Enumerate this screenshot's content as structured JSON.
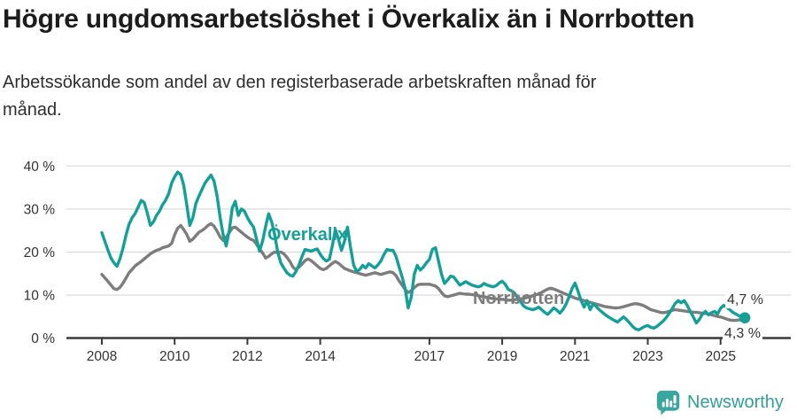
{
  "header": {
    "title": "Högre ungdomsarbetslöshet i Överkalix än i Norrbotten",
    "subtitle": "Arbetssökande som andel av den registerbaserade arbetskraften månad för månad."
  },
  "chart_data": {
    "type": "line",
    "title": "Högre ungdomsarbetslöshet i Överkalix än i Norrbotten",
    "subtitle": "Arbetssökande som andel av den registerbaserade arbetskraften månad för månad.",
    "x_unit": "month",
    "x_start": "2008-01",
    "x_end": "2025-09",
    "ylim": [
      0,
      40
    ],
    "grid": "horizontal",
    "legend_position": "inline-labels",
    "y_ticks": [
      {
        "value": 0,
        "label": "0 %"
      },
      {
        "value": 10,
        "label": "10 %"
      },
      {
        "value": 20,
        "label": "20 %"
      },
      {
        "value": 30,
        "label": "30 %"
      },
      {
        "value": 40,
        "label": "40 %"
      }
    ],
    "x_ticks": [
      {
        "year": 2008,
        "label": "2008"
      },
      {
        "year": 2010,
        "label": "2010"
      },
      {
        "year": 2012,
        "label": "2012"
      },
      {
        "year": 2014,
        "label": "2014"
      },
      {
        "year": 2017,
        "label": "2017"
      },
      {
        "year": 2019,
        "label": "2019"
      },
      {
        "year": 2021,
        "label": "2021"
      },
      {
        "year": 2023,
        "label": "2023"
      },
      {
        "year": 2025,
        "label": "2025"
      }
    ],
    "series": [
      {
        "name": "Överkalix",
        "color": "#14a098",
        "end_label": "4,7 %",
        "end_value": 4.7,
        "end_marker": "dot",
        "values": [
          24.5,
          22.5,
          20.5,
          18.6,
          17.5,
          16.7,
          18.5,
          21.0,
          24.0,
          26.5,
          28.0,
          29.0,
          30.5,
          32.0,
          31.5,
          29.0,
          26.2,
          27.0,
          28.5,
          29.5,
          31.0,
          32.0,
          33.5,
          36.0,
          37.5,
          38.6,
          38.0,
          35.5,
          31.0,
          26.2,
          28.0,
          31.3,
          33.0,
          34.5,
          36.0,
          37.0,
          37.9,
          36.5,
          33.0,
          28.0,
          24.0,
          21.4,
          25.0,
          30.3,
          31.8,
          28.5,
          30.0,
          29.5,
          28.0,
          26.8,
          25.8,
          23.0,
          20.2,
          22.5,
          26.0,
          28.9,
          27.0,
          24.0,
          20.0,
          17.5,
          16.3,
          15.2,
          14.6,
          14.4,
          15.5,
          17.0,
          19.0,
          20.6,
          20.4,
          20.2,
          20.5,
          20.7,
          19.5,
          18.5,
          17.9,
          18.3,
          21.5,
          25.2,
          23.0,
          20.4,
          22.5,
          25.8,
          21.0,
          17.0,
          15.5,
          15.9,
          16.9,
          16.3,
          17.3,
          16.8,
          16.3,
          17.0,
          17.9,
          19.4,
          20.6,
          20.4,
          20.4,
          19.0,
          16.5,
          14.2,
          11.5,
          7.0,
          9.5,
          14.8,
          16.9,
          15.8,
          16.5,
          17.5,
          18.3,
          20.6,
          21.0,
          17.9,
          14.8,
          12.7,
          13.5,
          14.4,
          14.2,
          13.3,
          12.3,
          12.7,
          13.1,
          12.7,
          12.3,
          12.1,
          11.9,
          12.1,
          12.7,
          12.3,
          12.1,
          11.9,
          12.2,
          12.8,
          13.2,
          12.5,
          11.3,
          11.0,
          10.5,
          9.5,
          8.5,
          7.5,
          7.0,
          6.8,
          6.6,
          6.8,
          7.2,
          6.6,
          6.0,
          5.5,
          6.2,
          7.0,
          6.5,
          5.8,
          6.6,
          7.8,
          9.5,
          11.5,
          12.8,
          10.9,
          8.7,
          7.2,
          8.7,
          6.6,
          8.0,
          7.3,
          6.6,
          6.0,
          5.4,
          4.9,
          4.5,
          4.1,
          3.7,
          4.3,
          4.9,
          4.3,
          3.5,
          2.7,
          2.1,
          1.9,
          2.3,
          2.7,
          2.9,
          2.5,
          2.3,
          2.7,
          3.3,
          3.9,
          4.7,
          5.7,
          6.8,
          8.0,
          8.7,
          8.2,
          8.7,
          7.6,
          6.2,
          4.9,
          3.5,
          4.3,
          5.6,
          6.2,
          5.4,
          5.9,
          6.2,
          5.6,
          6.9,
          7.6,
          7.2,
          6.6,
          6.0,
          5.6,
          5.2,
          4.9,
          4.7
        ]
      },
      {
        "name": "Norrbotten",
        "color": "#7d7d7d",
        "end_label": "4,3 %",
        "end_value": 4.3,
        "end_marker": "none",
        "values": [
          14.8,
          14.0,
          13.2,
          12.3,
          11.5,
          11.3,
          11.8,
          12.8,
          14.0,
          15.2,
          16.0,
          16.8,
          17.3,
          17.8,
          18.4,
          19.0,
          19.6,
          20.0,
          20.4,
          20.6,
          21.0,
          21.2,
          21.4,
          22.0,
          24.0,
          25.5,
          26.2,
          25.2,
          24.1,
          22.5,
          23.0,
          23.8,
          24.6,
          25.0,
          25.5,
          26.2,
          26.6,
          26.0,
          24.8,
          23.5,
          22.7,
          23.5,
          24.5,
          25.6,
          25.8,
          25.2,
          24.6,
          24.0,
          23.5,
          23.0,
          22.7,
          21.8,
          20.7,
          19.8,
          18.6,
          19.0,
          19.6,
          20.0,
          19.8,
          20.0,
          19.6,
          18.8,
          17.8,
          16.5,
          15.9,
          16.5,
          17.2,
          18.0,
          18.4,
          18.0,
          17.4,
          16.8,
          16.2,
          15.9,
          16.2,
          16.8,
          17.4,
          17.8,
          17.4,
          16.8,
          16.2,
          15.9,
          15.6,
          15.4,
          15.2,
          15.0,
          14.8,
          14.6,
          14.8,
          15.0,
          15.2,
          15.0,
          14.8,
          15.0,
          15.2,
          15.4,
          15.2,
          14.5,
          13.3,
          12.3,
          11.3,
          10.6,
          11.0,
          11.7,
          12.3,
          12.5,
          12.5,
          12.5,
          12.5,
          12.3,
          12.1,
          11.5,
          10.6,
          9.8,
          9.6,
          9.8,
          10.0,
          10.2,
          10.4,
          10.3,
          10.2,
          10.2,
          10.1,
          10.0,
          9.9,
          9.7,
          9.6,
          9.4,
          9.3,
          9.2,
          9.1,
          9.0,
          9.0,
          8.9,
          8.8,
          8.8,
          8.9,
          9.0,
          9.1,
          9.2,
          9.4,
          9.6,
          9.8,
          10.0,
          10.3,
          10.6,
          11.0,
          11.4,
          11.6,
          11.4,
          11.1,
          10.8,
          10.5,
          10.2,
          9.9,
          9.6,
          9.3,
          9.1,
          8.9,
          8.7,
          8.5,
          8.3,
          8.1,
          7.9,
          7.7,
          7.5,
          7.3,
          7.2,
          7.1,
          7.0,
          7.0,
          7.1,
          7.3,
          7.5,
          7.7,
          7.9,
          8.0,
          7.9,
          7.7,
          7.4,
          7.0,
          6.6,
          6.4,
          6.2,
          6.0,
          5.9,
          6.0,
          6.2,
          6.4,
          6.6,
          6.5,
          6.4,
          6.3,
          6.2,
          6.1,
          6.0,
          6.0,
          5.9,
          5.8,
          5.7,
          5.6,
          5.4,
          5.2,
          5.0,
          4.9,
          4.7,
          4.4,
          4.2,
          4.1,
          4.1,
          4.2,
          4.2,
          4.3
        ]
      }
    ]
  },
  "footer": {
    "brand": "Newsworthy",
    "logo_icon": "bar-chart-speech-bubble"
  }
}
